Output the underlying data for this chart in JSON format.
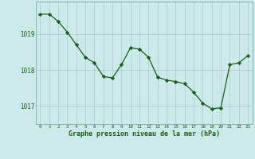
{
  "x": [
    0,
    1,
    2,
    3,
    4,
    5,
    6,
    7,
    8,
    9,
    10,
    11,
    12,
    13,
    14,
    15,
    16,
    17,
    18,
    19,
    20,
    21,
    22,
    23
  ],
  "y": [
    1019.55,
    1019.55,
    1019.35,
    1019.05,
    1018.7,
    1018.35,
    1018.2,
    1017.82,
    1017.78,
    1018.15,
    1018.62,
    1018.58,
    1018.35,
    1017.8,
    1017.72,
    1017.68,
    1017.62,
    1017.38,
    1017.08,
    1016.92,
    1016.95,
    1018.15,
    1018.2,
    1018.4
  ],
  "line_color": "#1a5c1a",
  "marker": "D",
  "marker_size": 2.2,
  "bg_color": "#cdeaea",
  "grid_color": "#aacccc",
  "ylabel_ticks": [
    1017,
    1018,
    1019
  ],
  "xtick_labels": [
    "0",
    "1",
    "2",
    "3",
    "4",
    "5",
    "6",
    "7",
    "8",
    "9",
    "10",
    "11",
    "12",
    "13",
    "14",
    "15",
    "16",
    "17",
    "18",
    "19",
    "20",
    "21",
    "22",
    "23"
  ],
  "xlabel": "Graphe pression niveau de la mer (hPa)",
  "ylim": [
    1016.5,
    1019.9
  ],
  "xlim": [
    -0.5,
    23.5
  ],
  "font_color": "#1a5c1a"
}
